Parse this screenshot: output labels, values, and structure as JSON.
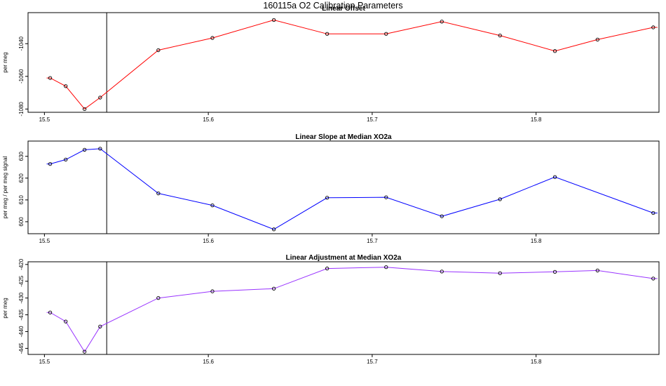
{
  "figure": {
    "title": "160115a   O2 Calibration Parameters"
  },
  "chart_data": [
    {
      "type": "line",
      "title": "Linear Offset",
      "xlabel": "",
      "ylabel": "per meg",
      "color": "#ff0000",
      "xlim": [
        15.49,
        15.875
      ],
      "ylim": [
        -1082,
        -1021
      ],
      "xticks": [
        15.5,
        15.6,
        15.7,
        15.8
      ],
      "xtick_labels": [
        "15.5",
        "15.6",
        "15.7",
        "15.8"
      ],
      "yticks": [
        -1080,
        -1060,
        -1040
      ],
      "ytick_labels": [
        "-1080",
        "-1060",
        "-1040"
      ],
      "vline_x": 15.538,
      "grid": false,
      "series": [
        {
          "x": [
            15.5035,
            15.513,
            15.5245,
            15.534,
            15.5695,
            15.6025,
            15.64,
            15.6725,
            15.7085,
            15.7425,
            15.778,
            15.8115,
            15.8375,
            15.8715
          ],
          "y": [
            -1061,
            -1066,
            -1080,
            -1073,
            -1044,
            -1036.5,
            -1025.5,
            -1034,
            -1034,
            -1026.5,
            -1035,
            -1044.5,
            -1037.5,
            -1030
          ]
        }
      ]
    },
    {
      "type": "line",
      "title": "Linear Slope at Median XO2a",
      "xlabel": "",
      "ylabel": "per meg / per meg signal",
      "color": "#0000ff",
      "xlim": [
        15.49,
        15.875
      ],
      "ylim": [
        594.5,
        637
      ],
      "xticks": [
        15.5,
        15.6,
        15.7,
        15.8
      ],
      "xtick_labels": [
        "15.5",
        "15.6",
        "15.7",
        "15.8"
      ],
      "yticks": [
        600,
        610,
        620,
        630
      ],
      "ytick_labels": [
        "600",
        "610",
        "620",
        "630"
      ],
      "vline_x": 15.538,
      "grid": false,
      "series": [
        {
          "x": [
            15.5035,
            15.513,
            15.5245,
            15.534,
            15.5695,
            15.6025,
            15.64,
            15.6725,
            15.7085,
            15.7425,
            15.778,
            15.8115,
            15.8715
          ],
          "y": [
            626.5,
            628.5,
            633,
            633.5,
            613,
            607.5,
            596.5,
            611,
            611.2,
            602.5,
            610.3,
            620.5,
            604
          ]
        }
      ]
    },
    {
      "type": "line",
      "title": "Linear Adjustment at Median XO2a",
      "xlabel": "",
      "ylabel": "per meg",
      "color": "#9933ff",
      "xlim": [
        15.49,
        15.875
      ],
      "ylim": [
        -446.8,
        -419.2
      ],
      "xticks": [
        15.5,
        15.6,
        15.7,
        15.8
      ],
      "xtick_labels": [
        "15.5",
        "15.6",
        "15.7",
        "15.8"
      ],
      "yticks": [
        -445,
        -440,
        -435,
        -430,
        -425,
        -420
      ],
      "ytick_labels": [
        "-445",
        "-440",
        "-435",
        "-430",
        "-425",
        "-420"
      ],
      "vline_x": 15.538,
      "grid": false,
      "series": [
        {
          "x": [
            15.5035,
            15.513,
            15.5245,
            15.534,
            15.5695,
            15.6025,
            15.64,
            15.6725,
            15.7085,
            15.7425,
            15.778,
            15.8115,
            15.8375,
            15.8715
          ],
          "y": [
            -434.3,
            -437,
            -446,
            -438.5,
            -430,
            -428,
            -427.2,
            -421.2,
            -420.8,
            -422.1,
            -422.6,
            -422.2,
            -421.8,
            -424.2
          ]
        }
      ]
    }
  ]
}
